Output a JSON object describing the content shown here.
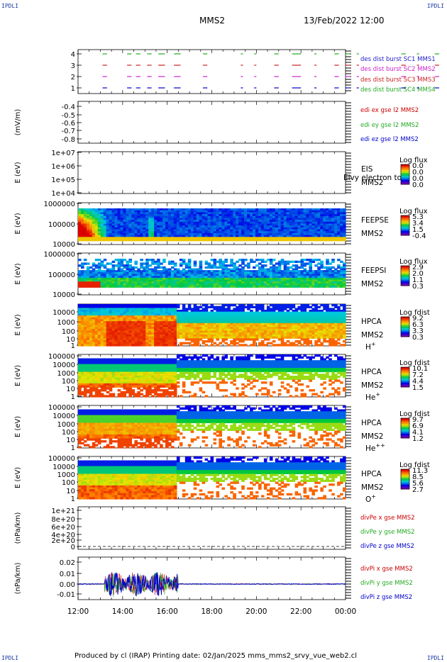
{
  "corners": {
    "tl": "IPDLI",
    "tr": "IPDLI",
    "bl": "IPDLI",
    "br": "IPDLI"
  },
  "header": {
    "spacecraft": "MMS2",
    "datetime": "13/Feb/2022 12:00"
  },
  "footer": {
    "text": "Produced by cl (IRAP)   Printing date: 02/Jan/2025   mms_mms2_srvy_vue_web2.cl"
  },
  "time_axis": {
    "ticks": [
      "12:00",
      "14:00",
      "16:00",
      "18:00",
      "20:00",
      "22:00",
      "00:00"
    ]
  },
  "panels": [
    {
      "id": "burst",
      "ylabel": "",
      "yticks": [
        "4",
        "3",
        "2",
        "1"
      ],
      "labels": [
        {
          "text": "des dist burst SC1 MMS1",
          "color": "#2222cc"
        },
        {
          "text": "des dist burst SC2 MMS2",
          "color": "#cc22cc"
        },
        {
          "text": "des dist burst SC3 MMS3",
          "color": "#cc2222"
        },
        {
          "text": "des dist burst SC4 MMS4",
          "color": "#22aa22"
        }
      ]
    },
    {
      "id": "edi",
      "ylabel": "(mV/m)",
      "yticks": [
        "-0.4",
        "-0.5",
        "-0.6",
        "-0.7",
        "-0.8"
      ],
      "labels": [
        {
          "text": "edi ex gse l2 MMS2",
          "color": "#cc0000"
        },
        {
          "text": "edi ey gse l2 MMS2",
          "color": "#22aa22"
        },
        {
          "text": "edi ez gse l2 MMS2",
          "color": "#0000cc"
        }
      ]
    },
    {
      "id": "eis",
      "ylabel": "E (eV)",
      "yticks": [
        "1e+07",
        "1e+06",
        "1e+05",
        "1e+04"
      ],
      "labels": [
        {
          "text": "EIS",
          "color": "#000"
        },
        {
          "text": "MMS2",
          "color": "#000"
        }
      ],
      "overlay": "Elvy electron to",
      "colorbar": {
        "title": "Log flux",
        "ticks": [
          "0.0",
          "0.0",
          "0.0",
          "0.0"
        ]
      }
    },
    {
      "id": "feepse",
      "ylabel": "E (eV)",
      "yticks": [
        "1000000",
        "100000",
        "10000"
      ],
      "labels": [
        {
          "text": "FEEPSE",
          "color": "#000"
        },
        {
          "text": "MMS2",
          "color": "#000"
        }
      ],
      "colorbar": {
        "title": "Log flux",
        "ticks": [
          "5.3",
          "3.4",
          "1.5",
          "-0.4"
        ]
      }
    },
    {
      "id": "feepsi",
      "ylabel": "E (eV)",
      "yticks": [
        "1000000",
        "100000",
        "10000"
      ],
      "labels": [
        {
          "text": "FEEPSI",
          "color": "#000"
        },
        {
          "text": "MMS2",
          "color": "#000"
        }
      ],
      "colorbar": {
        "title": "Log flux",
        "ticks": [
          "2.9",
          "2.0",
          "1.1",
          "0.3"
        ]
      }
    },
    {
      "id": "hpca_h",
      "ylabel": "E (eV)",
      "yticks": [
        "10000",
        "1000",
        "100",
        "10",
        "1"
      ],
      "labels": [
        {
          "text": "HPCA",
          "color": "#000"
        },
        {
          "text": "MMS2",
          "color": "#000"
        },
        {
          "text": "H",
          "sup": "+",
          "color": "#000"
        }
      ],
      "colorbar": {
        "title": "Log fdist",
        "ticks": [
          "9.2",
          "6.3",
          "3.3",
          "0.3"
        ]
      }
    },
    {
      "id": "hpca_he",
      "ylabel": "E (eV)",
      "yticks": [
        "100000",
        "10000",
        "1000",
        "100",
        "10",
        "1"
      ],
      "labels": [
        {
          "text": "HPCA",
          "color": "#000"
        },
        {
          "text": "MMS2",
          "color": "#000"
        },
        {
          "text": "He",
          "sup": "+",
          "color": "#000"
        }
      ],
      "colorbar": {
        "title": "Log fdist",
        "ticks": [
          "10.1",
          "7.2",
          "4.4",
          "1.5"
        ]
      }
    },
    {
      "id": "hpca_he2",
      "ylabel": "E (eV)",
      "yticks": [
        "100000",
        "10000",
        "1000",
        "100",
        "10",
        "1"
      ],
      "labels": [
        {
          "text": "HPCA",
          "color": "#000"
        },
        {
          "text": "MMS2",
          "color": "#000"
        },
        {
          "text": "He",
          "sup": "++",
          "color": "#000"
        }
      ],
      "colorbar": {
        "title": "Log fdist",
        "ticks": [
          "9.7",
          "6.9",
          "4.1",
          "1.2"
        ]
      }
    },
    {
      "id": "hpca_o",
      "ylabel": "E (eV)",
      "yticks": [
        "100000",
        "10000",
        "1000",
        "100",
        "10",
        "1"
      ],
      "labels": [
        {
          "text": "HPCA",
          "color": "#000"
        },
        {
          "text": "MMS2",
          "color": "#000"
        },
        {
          "text": "O",
          "sup": "+",
          "color": "#000"
        }
      ],
      "colorbar": {
        "title": "Log fdist",
        "ticks": [
          "11.3",
          "8.5",
          "5.6",
          "2.7"
        ]
      }
    },
    {
      "id": "divpe",
      "ylabel": "(nPa/km)",
      "yticks": [
        "1e+21",
        "8e+20",
        "6e+20",
        "4e+20",
        "2e+20",
        "0"
      ],
      "labels": [
        {
          "text": "divPe x gse MMS2",
          "color": "#cc0000"
        },
        {
          "text": "divPe y gse MMS2",
          "color": "#22aa22"
        },
        {
          "text": "divPe z gse MMS2",
          "color": "#0000cc"
        }
      ]
    },
    {
      "id": "divpi",
      "ylabel": "(nPa/km)",
      "yticks": [
        "0.02",
        "0.01",
        "0.00",
        "-0.01"
      ],
      "labels": [
        {
          "text": "divPi x gse MMS2",
          "color": "#cc0000"
        },
        {
          "text": "divPi y gse MMS2",
          "color": "#22aa22"
        },
        {
          "text": "divPi z gse MMS2",
          "color": "#0000cc"
        }
      ]
    }
  ],
  "chart_data": [
    {
      "type": "scatter",
      "title": "des dist burst",
      "ylim": [
        0.5,
        4.5
      ],
      "series": [
        {
          "name": "des dist burst SC1 MMS1",
          "y": 1
        },
        {
          "name": "des dist burst SC2 MMS2",
          "y": 2
        },
        {
          "name": "des dist burst SC3 MMS3",
          "y": 3
        },
        {
          "name": "des dist burst SC4 MMS4",
          "y": 4
        }
      ],
      "burst_intervals_hours": [
        [
          1.1,
          1.3
        ],
        [
          2.2,
          2.4
        ],
        [
          2.6,
          2.8
        ],
        [
          3.1,
          3.3
        ],
        [
          3.6,
          3.9
        ],
        [
          4.3,
          4.6
        ],
        [
          5.6,
          5.8
        ],
        [
          7.3,
          7.4
        ],
        [
          7.9,
          8.0
        ],
        [
          8.8,
          9.0
        ],
        [
          9.6,
          10.0
        ],
        [
          10.6,
          10.7
        ],
        [
          11.5,
          11.7
        ],
        [
          12.0,
          12.2
        ],
        [
          12.5,
          12.6
        ],
        [
          14.5,
          14.7
        ],
        [
          15.2,
          15.3
        ],
        [
          16.0,
          16.2
        ],
        [
          17.0,
          17.2
        ],
        [
          17.7,
          17.9
        ]
      ]
    },
    {
      "type": "line",
      "series": [
        {
          "name": "edi ex gse l2 MMS2",
          "values": []
        },
        {
          "name": "edi ey gse l2 MMS2",
          "values": []
        },
        {
          "name": "edi ez gse l2 MMS2",
          "values": []
        }
      ],
      "ylim": [
        -0.8,
        -0.4
      ]
    },
    {
      "type": "heatmap",
      "title": "EIS",
      "ylog": true,
      "ylim": [
        10000,
        10000000
      ],
      "values": "empty"
    },
    {
      "type": "heatmap",
      "title": "FEEPSE",
      "ylog": true,
      "ylim": [
        10000,
        1000000
      ],
      "clim": [
        -0.4,
        5.3
      ]
    },
    {
      "type": "heatmap",
      "title": "FEEPSI",
      "ylog": true,
      "ylim": [
        10000,
        1000000
      ],
      "clim": [
        0.3,
        2.9
      ]
    },
    {
      "type": "heatmap",
      "title": "HPCA H+",
      "ylog": true,
      "ylim": [
        1,
        30000
      ],
      "clim": [
        0.3,
        9.2
      ]
    },
    {
      "type": "heatmap",
      "title": "HPCA He+",
      "ylog": true,
      "ylim": [
        1,
        100000
      ],
      "clim": [
        1.5,
        10.1
      ]
    },
    {
      "type": "heatmap",
      "title": "HPCA He++",
      "ylog": true,
      "ylim": [
        1,
        100000
      ],
      "clim": [
        1.2,
        9.7
      ]
    },
    {
      "type": "heatmap",
      "title": "HPCA O+",
      "ylog": true,
      "ylim": [
        1,
        100000
      ],
      "clim": [
        2.7,
        11.3
      ]
    },
    {
      "type": "line",
      "series": [
        {
          "name": "divPe x gse MMS2",
          "values": [
            0,
            0
          ]
        },
        {
          "name": "divPe y gse MMS2",
          "values": [
            0,
            0
          ]
        },
        {
          "name": "divPe z gse MMS2",
          "values": [
            0,
            0
          ]
        }
      ],
      "ylim": [
        0,
        1e+21
      ]
    },
    {
      "type": "line",
      "series": [
        {
          "name": "divPi x gse MMS2"
        },
        {
          "name": "divPi y gse MMS2"
        },
        {
          "name": "divPi z gse MMS2"
        }
      ],
      "ylim": [
        -0.015,
        0.025
      ],
      "x_hours": [
        0,
        1.0,
        1.2,
        1.4,
        1.6,
        2.0,
        2.4,
        2.8,
        3.0,
        3.3,
        3.6,
        3.8,
        4.0,
        4.2,
        4.3,
        4.4,
        5,
        8,
        12
      ],
      "z_values": [
        0,
        0,
        0.002,
        -0.004,
        0.008,
        0.004,
        -0.005,
        0.006,
        0.012,
        0.018,
        -0.006,
        0.01,
        0.02,
        0.006,
        -0.003,
        0.001,
        0,
        0,
        0
      ]
    }
  ]
}
